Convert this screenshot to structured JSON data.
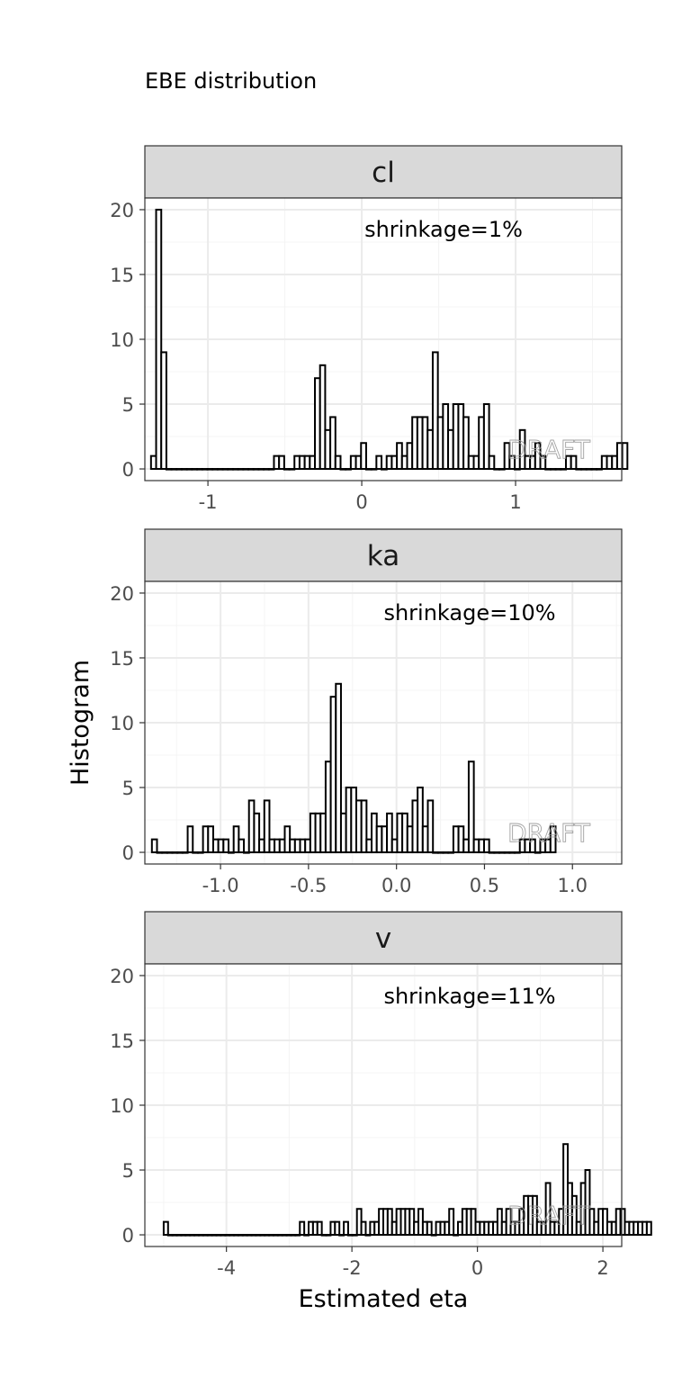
{
  "title": "EBE distribution",
  "ylabel": "Histogram",
  "xlabel": "Estimated eta",
  "watermark": "DRAFT",
  "colors": {
    "strip_fill": "#d9d9d9",
    "panel_border": "#333333",
    "grid_major": "#ebebeb",
    "grid_minor": "#f4f4f4",
    "bar_outline": "#000000",
    "bar_fill": "#ffffff",
    "watermark": "#999999"
  },
  "chart_data": [
    {
      "type": "bar",
      "panel": "cl",
      "annotation": "shrinkage=1%",
      "xlim": [
        -1.41,
        1.69
      ],
      "ylim": [
        -0.9,
        20.9
      ],
      "xticks": [
        -1,
        0,
        1
      ],
      "xtick_labels": [
        "-1",
        "0",
        "1"
      ],
      "yticks": [
        0,
        5,
        10,
        15,
        20
      ],
      "ytick_labels": [
        "0",
        "5",
        "10",
        "15",
        "20"
      ],
      "bin_start": -1.37,
      "bin_width": 0.0333,
      "counts": [
        1,
        20,
        9,
        0,
        0,
        0,
        0,
        0,
        0,
        0,
        0,
        0,
        0,
        0,
        0,
        0,
        0,
        0,
        0,
        0,
        0,
        0,
        0,
        0,
        1,
        1,
        0,
        0,
        1,
        1,
        1,
        1,
        7,
        8,
        3,
        4,
        1,
        0,
        0,
        1,
        1,
        2,
        0,
        0,
        1,
        0,
        1,
        1,
        2,
        1,
        2,
        4,
        4,
        4,
        3,
        9,
        4,
        5,
        3,
        5,
        5,
        4,
        1,
        1,
        4,
        5,
        1,
        0,
        0,
        2,
        1,
        0,
        3,
        1,
        1,
        2,
        1,
        0,
        0,
        0,
        0,
        1,
        1,
        0,
        0,
        0,
        0,
        0,
        1,
        1,
        1,
        2,
        2
      ]
    },
    {
      "type": "bar",
      "panel": "ka",
      "annotation": "shrinkage=10%",
      "xlim": [
        -1.43,
        1.28
      ],
      "ylim": [
        -0.9,
        20.9
      ],
      "xticks": [
        -1.0,
        -0.5,
        0.0,
        0.5,
        1.0
      ],
      "xtick_labels": [
        "-1.0",
        "-0.5",
        "0.0",
        "0.5",
        "1.0"
      ],
      "yticks": [
        0,
        5,
        10,
        15,
        20
      ],
      "ytick_labels": [
        "0",
        "5",
        "10",
        "15",
        "20"
      ],
      "bin_start": -1.39,
      "bin_width": 0.02904,
      "counts": [
        1,
        0,
        0,
        0,
        0,
        0,
        0,
        2,
        0,
        0,
        2,
        2,
        1,
        1,
        1,
        0,
        2,
        1,
        0,
        4,
        3,
        1,
        4,
        1,
        1,
        1,
        2,
        1,
        1,
        1,
        1,
        3,
        3,
        3,
        7,
        12,
        13,
        3,
        5,
        5,
        4,
        4,
        1,
        3,
        2,
        2,
        3,
        1,
        3,
        3,
        2,
        4,
        5,
        2,
        4,
        0,
        0,
        0,
        0,
        2,
        2,
        1,
        7,
        1,
        1,
        1,
        0,
        0,
        0,
        0,
        0,
        0,
        1,
        1,
        1,
        0,
        1,
        1,
        2
      ]
    },
    {
      "type": "bar",
      "panel": "v",
      "annotation": "shrinkage=11%",
      "xlim": [
        -5.3,
        2.3
      ],
      "ylim": [
        -0.9,
        20.9
      ],
      "xticks": [
        -4,
        -2,
        0,
        2
      ],
      "xtick_labels": [
        "-4",
        "-2",
        "0",
        "2"
      ],
      "yticks": [
        0,
        5,
        10,
        15,
        20
      ],
      "ytick_labels": [
        "0",
        "5",
        "10",
        "15",
        "20"
      ],
      "bin_start": -5.0,
      "bin_width": 0.07,
      "counts": [
        1,
        0,
        0,
        0,
        0,
        0,
        0,
        0,
        0,
        0,
        0,
        0,
        0,
        0,
        0,
        0,
        0,
        0,
        0,
        0,
        0,
        0,
        0,
        0,
        0,
        0,
        0,
        0,
        0,
        0,
        0,
        1,
        0,
        1,
        1,
        1,
        0,
        0,
        1,
        1,
        0,
        1,
        0,
        0,
        2,
        1,
        0,
        1,
        1,
        2,
        2,
        2,
        1,
        2,
        2,
        2,
        2,
        1,
        2,
        1,
        1,
        0,
        1,
        1,
        1,
        2,
        0,
        1,
        2,
        2,
        2,
        1,
        1,
        1,
        1,
        1,
        2,
        1,
        2,
        1,
        1,
        2,
        3,
        3,
        3,
        1,
        1,
        4,
        1,
        1,
        2,
        7,
        4,
        3,
        1,
        4,
        5,
        2,
        1,
        2,
        2,
        1,
        1,
        2,
        2,
        1,
        1,
        1,
        1,
        1,
        1
      ]
    }
  ]
}
